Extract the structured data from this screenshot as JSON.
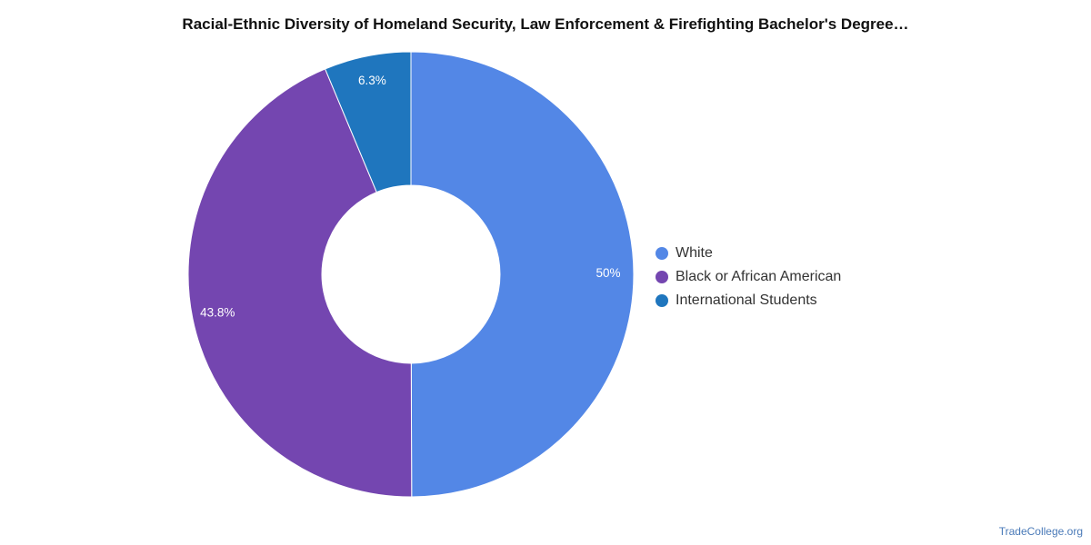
{
  "chart_data": {
    "type": "pie",
    "title": "Racial-Ethnic Diversity of Homeland Security, Law Enforcement & Firefighting Bachelor's Degree…",
    "donut": true,
    "slices": [
      {
        "name": "White",
        "value": 50,
        "label": "50%",
        "color": "#5387e6"
      },
      {
        "name": "Black or African American",
        "value": 43.8,
        "label": "43.8%",
        "color": "#7446b0"
      },
      {
        "name": "International Students",
        "value": 6.3,
        "label": "6.3%",
        "color": "#1f76be"
      }
    ],
    "legend": "right"
  },
  "footer": {
    "source": "TradeCollege.org"
  }
}
